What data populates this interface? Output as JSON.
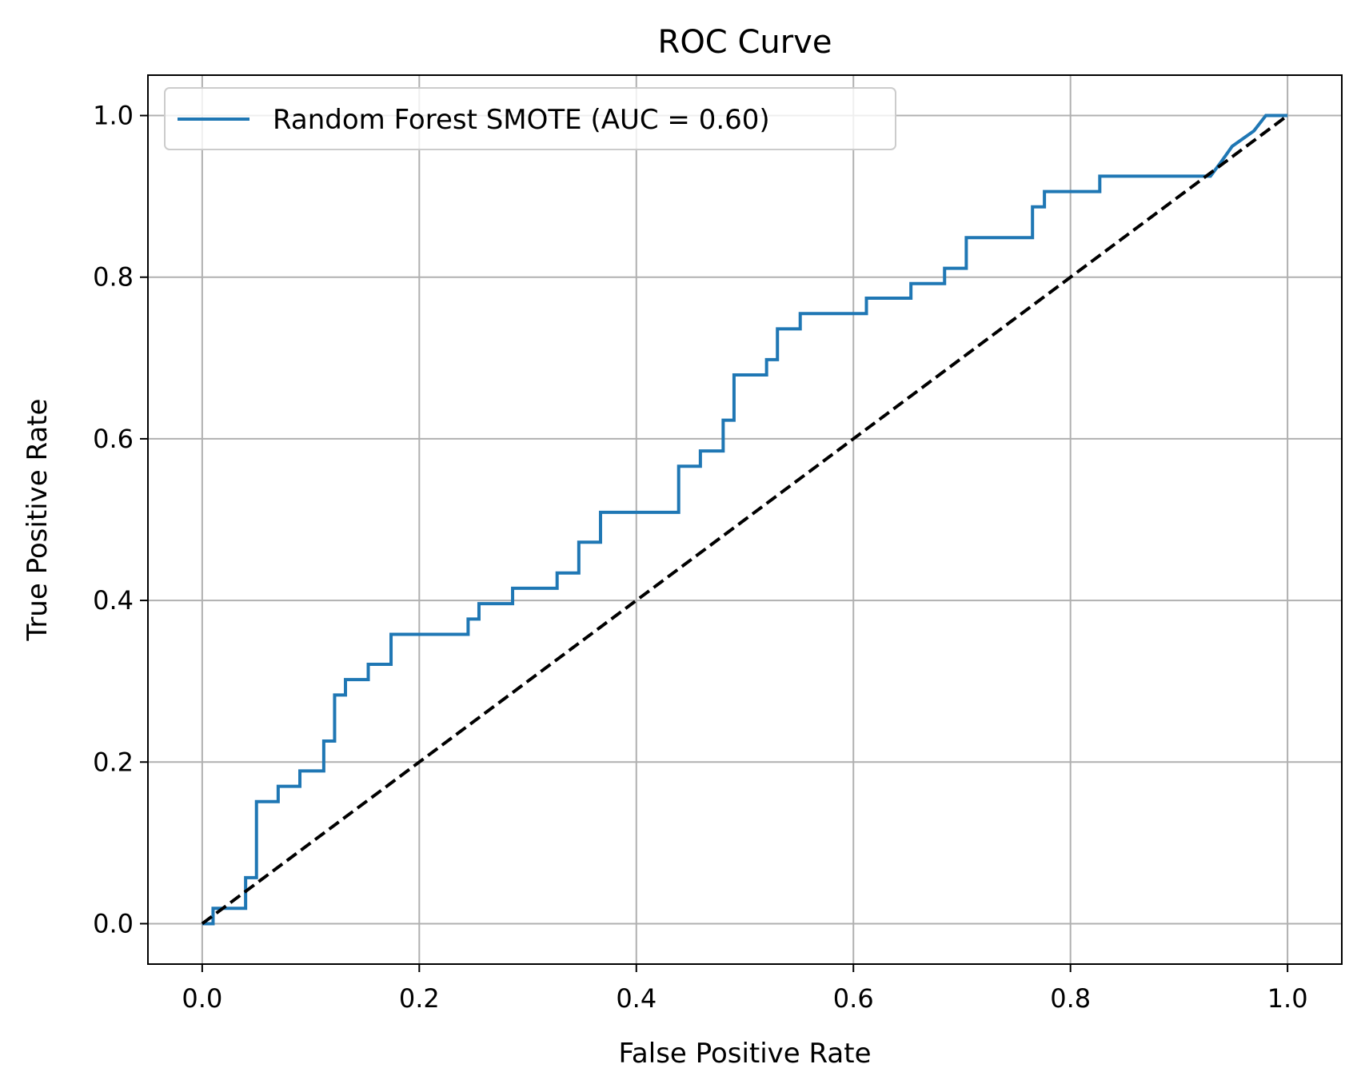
{
  "chart_data": {
    "type": "line",
    "title": "ROC Curve",
    "xlabel": "False Positive Rate",
    "ylabel": "True Positive Rate",
    "xlim": [
      -0.05,
      1.05
    ],
    "ylim": [
      -0.05,
      1.05
    ],
    "xticks": [
      0.0,
      0.2,
      0.4,
      0.6,
      0.8,
      1.0
    ],
    "yticks": [
      0.0,
      0.2,
      0.4,
      0.6,
      0.8,
      1.0
    ],
    "xtick_labels": [
      "0.0",
      "0.2",
      "0.4",
      "0.6",
      "0.8",
      "1.0"
    ],
    "ytick_labels": [
      "0.0",
      "0.2",
      "0.4",
      "0.6",
      "0.8",
      "1.0"
    ],
    "grid": true,
    "legend": {
      "position": "upper-left"
    },
    "series": [
      {
        "name": "Random Forest SMOTE (AUC = 0.60)",
        "color": "#1f77b4",
        "style": "solid",
        "step": true,
        "x": [
          0.0,
          0.01,
          0.01,
          0.04,
          0.04,
          0.05,
          0.05,
          0.07,
          0.07,
          0.09,
          0.09,
          0.112,
          0.112,
          0.122,
          0.122,
          0.132,
          0.132,
          0.153,
          0.153,
          0.174,
          0.174,
          0.245,
          0.245,
          0.255,
          0.255,
          0.286,
          0.286,
          0.296,
          0.296,
          0.327,
          0.327,
          0.347,
          0.347,
          0.367,
          0.367,
          0.439,
          0.439,
          0.459,
          0.459,
          0.48,
          0.48,
          0.49,
          0.49,
          0.51,
          0.51,
          0.52,
          0.52,
          0.53,
          0.53,
          0.551,
          0.551,
          0.612,
          0.612,
          0.653,
          0.653,
          0.684,
          0.684,
          0.694,
          0.694,
          0.704,
          0.704,
          0.765,
          0.765,
          0.776,
          0.776,
          0.827,
          0.827,
          0.837,
          0.837,
          0.929,
          0.929,
          0.939,
          0.939,
          0.949,
          0.949,
          0.969,
          0.969,
          0.98,
          0.98,
          1.0,
          1.0
        ],
        "y": [
          0.0,
          0.0,
          0.019,
          0.019,
          0.057,
          0.057,
          0.151,
          0.151,
          0.17,
          0.17,
          0.189,
          0.189,
          0.226,
          0.226,
          0.283,
          0.283,
          0.302,
          0.302,
          0.321,
          0.321,
          0.358,
          0.358,
          0.377,
          0.377,
          0.396,
          0.396,
          0.415,
          0.415,
          0.415,
          0.415,
          0.434,
          0.434,
          0.472,
          0.472,
          0.509,
          0.509,
          0.566,
          0.566,
          0.585,
          0.585,
          0.623,
          0.623,
          0.679,
          0.679,
          0.679,
          0.679,
          0.698,
          0.698,
          0.736,
          0.736,
          0.755,
          0.755,
          0.774,
          0.774,
          0.792,
          0.792,
          0.811,
          0.811,
          0.811,
          0.811,
          0.849,
          0.849,
          0.887,
          0.887,
          0.906,
          0.906,
          0.925,
          0.925,
          0.925,
          0.925,
          0.925,
          0.943,
          0.943,
          0.962,
          0.962,
          0.981,
          0.981,
          1.0,
          1.0,
          1.0,
          1.0
        ]
      },
      {
        "color": "#000000",
        "style": "dashed",
        "x": [
          0.0,
          1.0
        ],
        "y": [
          0.0,
          1.0
        ]
      }
    ]
  }
}
